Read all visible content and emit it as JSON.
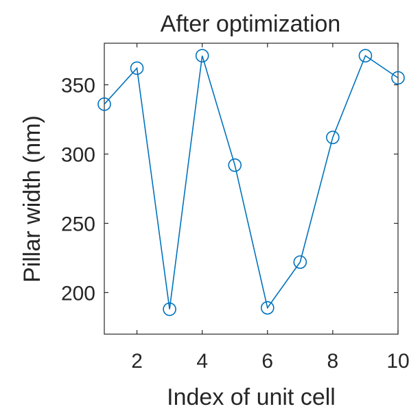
{
  "chart_data": {
    "type": "line",
    "title": "After optimization",
    "xlabel": "Index of unit cell",
    "ylabel": "Pillar width (nm)",
    "xlim": [
      1,
      10
    ],
    "ylim": [
      170,
      380
    ],
    "xticks": [
      2,
      4,
      6,
      8,
      10
    ],
    "yticks": [
      200,
      250,
      300,
      350
    ],
    "grid": false,
    "marker": "circle-open",
    "series": [
      {
        "x": [
          1,
          2,
          3,
          4,
          5,
          6,
          7,
          8,
          9,
          10
        ],
        "y": [
          336,
          362,
          188,
          371,
          292,
          189,
          222,
          312,
          371,
          355
        ]
      }
    ],
    "colors": {
      "line": "#0072BD",
      "axis": "#262626",
      "text": "#262626"
    }
  }
}
